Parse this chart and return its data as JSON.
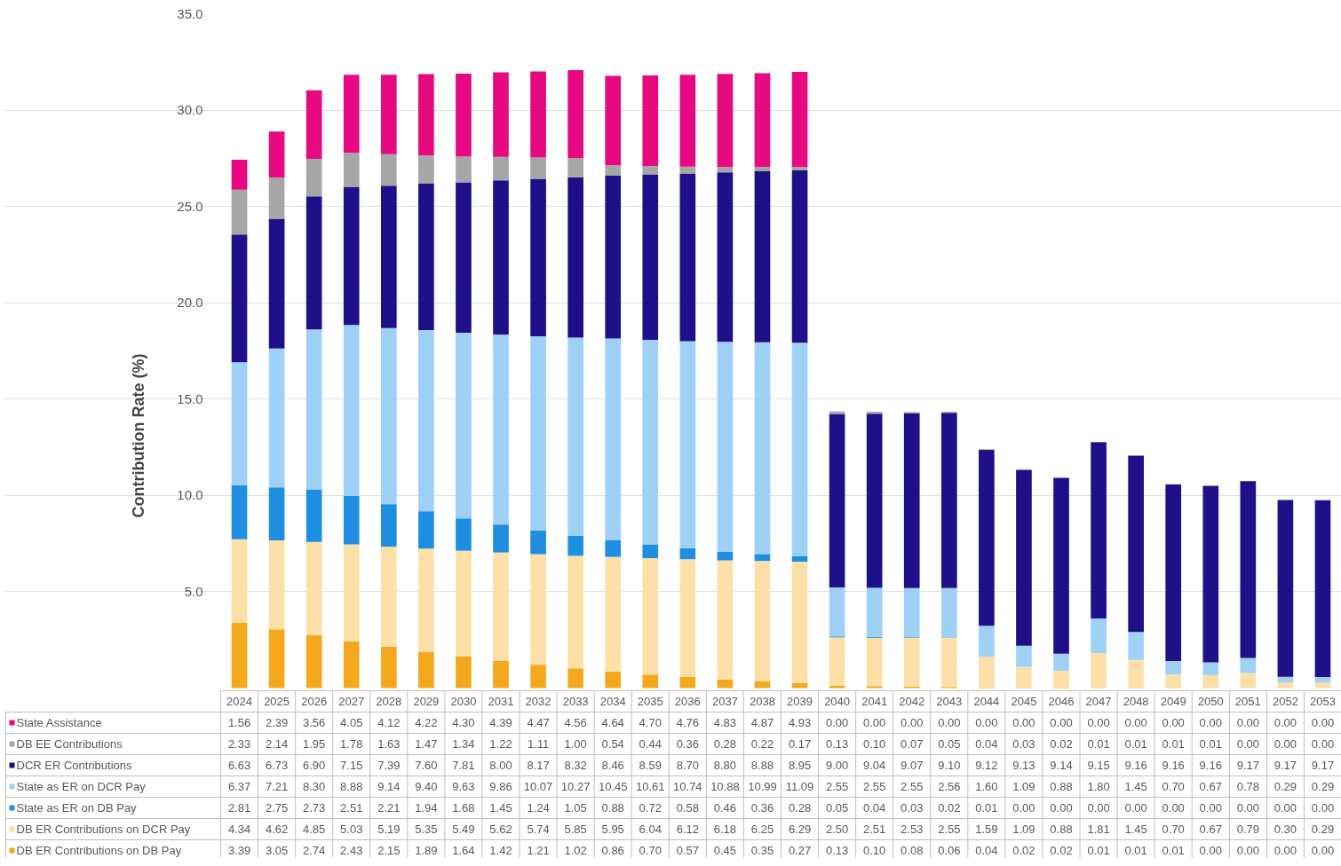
{
  "chart_data": {
    "type": "bar",
    "stacked": true,
    "ylabel": "Contribution Rate (%)",
    "categories": [
      "2024",
      "2025",
      "2026",
      "2027",
      "2028",
      "2029",
      "2030",
      "2031",
      "2032",
      "2033",
      "2034",
      "2035",
      "2036",
      "2037",
      "2038",
      "2039",
      "2040",
      "2041",
      "2042",
      "2043",
      "2044",
      "2045",
      "2046",
      "2047",
      "2048",
      "2049",
      "2050",
      "2051",
      "2052",
      "2053"
    ],
    "series": [
      {
        "name": "DB ER Contributions on DB Pay",
        "color": "#f5a81c",
        "values": [
          3.39,
          3.05,
          2.74,
          2.43,
          2.15,
          1.89,
          1.64,
          1.42,
          1.21,
          1.02,
          0.86,
          0.7,
          0.57,
          0.45,
          0.35,
          0.27,
          0.13,
          0.1,
          0.08,
          0.06,
          0.04,
          0.02,
          0.02,
          0.01,
          0.01,
          0.01,
          0.0,
          0.0,
          0.0,
          0.0
        ],
        "value_labels": [
          "3.39",
          "3.05",
          "2.74",
          "2.43",
          "2.15",
          "1.89",
          "1.64",
          "1.42",
          "1.21",
          "1.02",
          "0.86",
          "0.70",
          "0.57",
          "0.45",
          "0.35",
          "0.27",
          "0.13",
          "0.10",
          "0.08",
          "0.06",
          "0.04",
          "0.02",
          "0.02",
          "0.01",
          "0.01",
          "0.01",
          "0.00",
          "0.00",
          "0.00",
          "0.00"
        ]
      },
      {
        "name": "DB ER Contributions on DCR Pay",
        "color": "#fde0a8",
        "values": [
          4.34,
          4.62,
          4.85,
          5.03,
          5.19,
          5.35,
          5.49,
          5.62,
          5.74,
          5.85,
          5.95,
          6.04,
          6.12,
          6.18,
          6.25,
          6.29,
          2.5,
          2.51,
          2.53,
          2.55,
          1.59,
          1.09,
          0.88,
          1.81,
          1.45,
          0.7,
          0.67,
          0.79,
          0.3,
          0.29
        ],
        "value_labels": [
          "4.34",
          "4.62",
          "4.85",
          "5.03",
          "5.19",
          "5.35",
          "5.49",
          "5.62",
          "5.74",
          "5.85",
          "5.95",
          "6.04",
          "6.12",
          "6.18",
          "6.25",
          "6.29",
          "2.50",
          "2.51",
          "2.53",
          "2.55",
          "1.59",
          "1.09",
          "0.88",
          "1.81",
          "1.45",
          "0.70",
          "0.67",
          "0.79",
          "0.30",
          "0.29"
        ]
      },
      {
        "name": "State as ER on DB Pay",
        "color": "#1e8fe0",
        "values": [
          2.81,
          2.75,
          2.73,
          2.51,
          2.21,
          1.94,
          1.68,
          1.45,
          1.24,
          1.05,
          0.88,
          0.72,
          0.58,
          0.46,
          0.36,
          0.28,
          0.05,
          0.04,
          0.03,
          0.02,
          0.01,
          0.0,
          0.0,
          0.0,
          0.0,
          0.0,
          0.0,
          0.0,
          0.0,
          0.0
        ],
        "value_labels": [
          "2.81",
          "2.75",
          "2.73",
          "2.51",
          "2.21",
          "1.94",
          "1.68",
          "1.45",
          "1.24",
          "1.05",
          "0.88",
          "0.72",
          "0.58",
          "0.46",
          "0.36",
          "0.28",
          "0.05",
          "0.04",
          "0.03",
          "0.02",
          "0.01",
          "0.00",
          "0.00",
          "0.00",
          "0.00",
          "0.00",
          "0.00",
          "0.00",
          "0.00",
          "0.00"
        ]
      },
      {
        "name": "State as ER on DCR Pay",
        "color": "#9fd1f7",
        "values": [
          6.37,
          7.21,
          8.3,
          8.88,
          9.14,
          9.4,
          9.63,
          9.86,
          10.07,
          10.27,
          10.45,
          10.61,
          10.74,
          10.88,
          10.99,
          11.09,
          2.55,
          2.55,
          2.55,
          2.56,
          1.6,
          1.09,
          0.88,
          1.8,
          1.45,
          0.7,
          0.67,
          0.78,
          0.29,
          0.29
        ],
        "value_labels": [
          "6.37",
          "7.21",
          "8.30",
          "8.88",
          "9.14",
          "9.40",
          "9.63",
          "9.86",
          "10.07",
          "10.27",
          "10.45",
          "10.61",
          "10.74",
          "10.88",
          "10.99",
          "11.09",
          "2.55",
          "2.55",
          "2.55",
          "2.56",
          "1.60",
          "1.09",
          "0.88",
          "1.80",
          "1.45",
          "0.70",
          "0.67",
          "0.78",
          "0.29",
          "0.29"
        ]
      },
      {
        "name": "DCR ER Contributions",
        "color": "#1f108a",
        "values": [
          6.63,
          6.73,
          6.9,
          7.15,
          7.39,
          7.6,
          7.81,
          8.0,
          8.17,
          8.32,
          8.46,
          8.59,
          8.7,
          8.8,
          8.88,
          8.95,
          9.0,
          9.04,
          9.07,
          9.1,
          9.12,
          9.13,
          9.14,
          9.15,
          9.16,
          9.16,
          9.16,
          9.17,
          9.17,
          9.17
        ],
        "value_labels": [
          "6.63",
          "6.73",
          "6.90",
          "7.15",
          "7.39",
          "7.60",
          "7.81",
          "8.00",
          "8.17",
          "8.32",
          "8.46",
          "8.59",
          "8.70",
          "8.80",
          "8.88",
          "8.95",
          "9.00",
          "9.04",
          "9.07",
          "9.10",
          "9.12",
          "9.13",
          "9.14",
          "9.15",
          "9.16",
          "9.16",
          "9.16",
          "9.17",
          "9.17",
          "9.17"
        ]
      },
      {
        "name": "DB EE Contributions",
        "color": "#a6a6a6",
        "values": [
          2.33,
          2.14,
          1.95,
          1.78,
          1.63,
          1.47,
          1.34,
          1.22,
          1.11,
          1.0,
          0.54,
          0.44,
          0.36,
          0.28,
          0.22,
          0.17,
          0.13,
          0.1,
          0.07,
          0.05,
          0.04,
          0.03,
          0.02,
          0.01,
          0.01,
          0.01,
          0.01,
          0.0,
          0.0,
          0.0
        ],
        "value_labels": [
          "2.33",
          "2.14",
          "1.95",
          "1.78",
          "1.63",
          "1.47",
          "1.34",
          "1.22",
          "1.11",
          "1.00",
          "0.54",
          "0.44",
          "0.36",
          "0.28",
          "0.22",
          "0.17",
          "0.13",
          "0.10",
          "0.07",
          "0.05",
          "0.04",
          "0.03",
          "0.02",
          "0.01",
          "0.01",
          "0.01",
          "0.01",
          "0.00",
          "0.00",
          "0.00"
        ]
      },
      {
        "name": "State Assistance",
        "color": "#e6097f",
        "values": [
          1.56,
          2.39,
          3.56,
          4.05,
          4.12,
          4.22,
          4.3,
          4.39,
          4.47,
          4.56,
          4.64,
          4.7,
          4.76,
          4.83,
          4.87,
          4.93,
          0.0,
          0.0,
          0.0,
          0.0,
          0.0,
          0.0,
          0.0,
          0.0,
          0.0,
          0.0,
          0.0,
          0.0,
          0.0,
          0.0
        ],
        "value_labels": [
          "1.56",
          "2.39",
          "3.56",
          "4.05",
          "4.12",
          "4.22",
          "4.30",
          "4.39",
          "4.47",
          "4.56",
          "4.64",
          "4.70",
          "4.76",
          "4.83",
          "4.87",
          "4.93",
          "0.00",
          "0.00",
          "0.00",
          "0.00",
          "0.00",
          "0.00",
          "0.00",
          "0.00",
          "0.00",
          "0.00",
          "0.00",
          "0.00",
          "0.00",
          "0.00"
        ]
      }
    ],
    "ylim": [
      0,
      35
    ],
    "yticks": [
      {
        "value": 5,
        "label": "5.0"
      },
      {
        "value": 10,
        "label": "10.0"
      },
      {
        "value": 15,
        "label": "15.0"
      },
      {
        "value": 20,
        "label": "20.0"
      },
      {
        "value": 25,
        "label": "25.0"
      },
      {
        "value": 30,
        "label": "30.0"
      },
      {
        "value": 35,
        "label": "35.0"
      }
    ],
    "grid": "y",
    "legend": "bottom"
  }
}
